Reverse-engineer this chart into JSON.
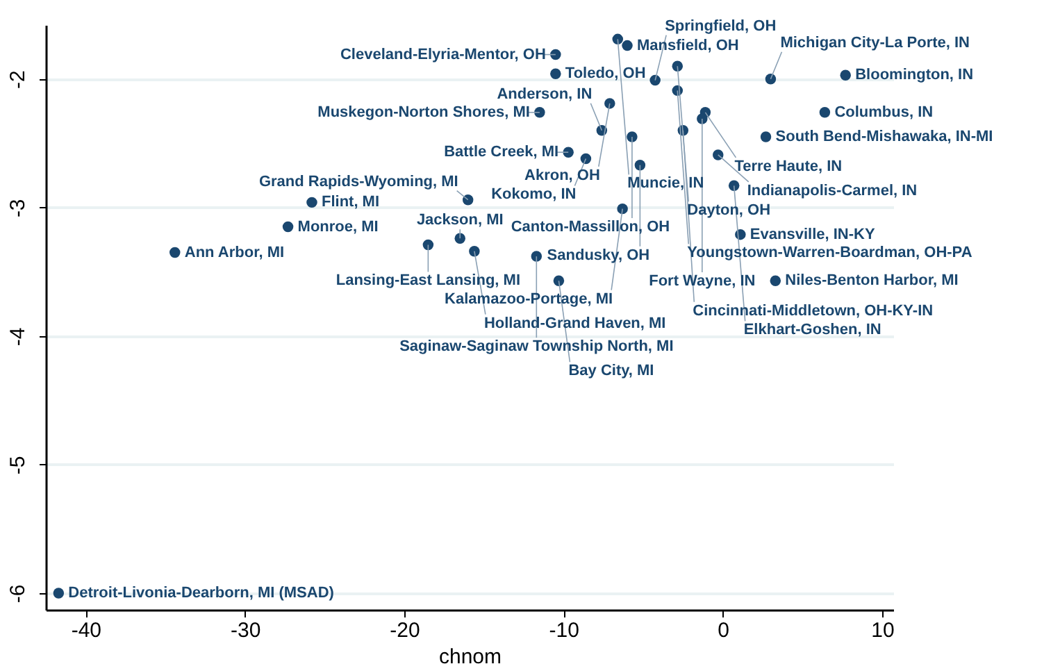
{
  "chart_data": {
    "type": "scatter",
    "xlabel": "chnom",
    "xlim": [
      -42.5,
      10.7
    ],
    "ylim": [
      -6.13,
      -1.58
    ],
    "xticks": [
      -40,
      -30,
      -20,
      -10,
      0,
      10
    ],
    "yticks": [
      -6,
      -5,
      -4,
      -3,
      -2
    ],
    "grid": "y",
    "marker": "circle",
    "series": [
      {
        "color": "#1a476f",
        "x": [
          -6.6,
          -6.0,
          -10.5,
          -10.5,
          -2.85,
          -4.25,
          3.0,
          7.7,
          -2.85,
          -7.1,
          -11.5,
          -1.1,
          -1.3,
          6.4,
          -7.6,
          -5.7,
          -2.5,
          2.7,
          -9.7,
          -8.6,
          -5.2,
          -0.3,
          0.7,
          -16.0,
          -6.3,
          -25.8,
          -27.3,
          -34.4,
          -16.5,
          -18.5,
          -15.6,
          -11.7,
          -10.3,
          1.1,
          3.3,
          -41.7
        ],
        "values": [
          -1.69,
          -1.74,
          -1.81,
          -1.96,
          -1.9,
          -2.01,
          -2.0,
          -1.97,
          -2.09,
          -2.19,
          -2.26,
          -2.26,
          -2.31,
          -2.26,
          -2.4,
          -2.45,
          -2.4,
          -2.45,
          -2.57,
          -2.62,
          -2.67,
          -2.59,
          -2.83,
          -2.94,
          -3.01,
          -2.96,
          -3.15,
          -3.35,
          -3.24,
          -3.29,
          -3.34,
          -3.38,
          -3.57,
          -3.21,
          -3.57,
          -6.0
        ]
      }
    ],
    "annotations": [
      {
        "text": "Muncie, IN",
        "x": -6.6,
        "y": -1.69
      },
      {
        "text": "Mansfield, OH",
        "x": -6.0,
        "y": -1.74
      },
      {
        "text": "Cleveland-Elyria-Mentor, OH",
        "x": -10.5,
        "y": -1.81
      },
      {
        "text": "Toledo, OH",
        "x": -10.5,
        "y": -1.96
      },
      {
        "text": "Dayton, OH",
        "x": -2.85,
        "y": -1.9
      },
      {
        "text": "Springfield, OH",
        "x": -4.25,
        "y": -2.01
      },
      {
        "text": "Michigan City-La Porte, IN",
        "x": 3.0,
        "y": -2.0
      },
      {
        "text": "Bloomington, IN",
        "x": 7.7,
        "y": -1.97
      },
      {
        "text": "Youngstown-Warren-Boardman, OH-PA",
        "x": -2.85,
        "y": -2.09
      },
      {
        "text": "Akron, OH",
        "x": -7.1,
        "y": -2.19
      },
      {
        "text": "Muskegon-Norton Shores, MI",
        "x": -11.5,
        "y": -2.26
      },
      {
        "text": "Terre Haute, IN",
        "x": -1.1,
        "y": -2.26
      },
      {
        "text": "Fort Wayne, IN",
        "x": -1.3,
        "y": -2.31
      },
      {
        "text": "Columbus, IN",
        "x": 6.4,
        "y": -2.26
      },
      {
        "text": "Anderson, IN",
        "x": -7.6,
        "y": -2.4
      },
      {
        "text": "Canton-Massillon, OH",
        "x": -5.7,
        "y": -2.45
      },
      {
        "text": "Cincinnati-Middletown, OH-KY-IN",
        "x": -2.5,
        "y": -2.4
      },
      {
        "text": "South Bend-Mishawaka, IN-MI",
        "x": 2.7,
        "y": -2.45
      },
      {
        "text": "Battle Creek, MI",
        "x": -9.7,
        "y": -2.57
      },
      {
        "text": "Kokomo, IN",
        "x": -8.6,
        "y": -2.62
      },
      {
        "text": "Sandusky, OH",
        "x": -5.2,
        "y": -2.67
      },
      {
        "text": "Indianapolis-Carmel, IN",
        "x": -0.3,
        "y": -2.59
      },
      {
        "text": "Elkhart-Goshen, IN",
        "x": 0.7,
        "y": -2.83
      },
      {
        "text": "Grand Rapids-Wyoming, MI",
        "x": -16.0,
        "y": -2.94
      },
      {
        "text": "Kalamazoo-Portage, MI",
        "x": -6.3,
        "y": -3.01
      },
      {
        "text": "Flint, MI",
        "x": -25.8,
        "y": -2.96
      },
      {
        "text": "Monroe, MI",
        "x": -27.3,
        "y": -3.15
      },
      {
        "text": "Ann Arbor, MI",
        "x": -34.4,
        "y": -3.35
      },
      {
        "text": "Jackson, MI",
        "x": -16.5,
        "y": -3.24
      },
      {
        "text": "Lansing-East Lansing, MI",
        "x": -18.5,
        "y": -3.29
      },
      {
        "text": "Holland-Grand Haven, MI",
        "x": -15.6,
        "y": -3.34
      },
      {
        "text": "Saginaw-Saginaw Township North, MI",
        "x": -11.7,
        "y": -3.38
      },
      {
        "text": "Bay City, MI",
        "x": -10.3,
        "y": -3.57
      },
      {
        "text": "Evansville, IN-KY",
        "x": 1.1,
        "y": -3.21
      },
      {
        "text": "Niles-Benton Harbor, MI",
        "x": 3.3,
        "y": -3.57
      },
      {
        "text": "Detroit-Livonia-Dearborn, MI  (MSAD)",
        "x": -41.7,
        "y": -6.0
      }
    ]
  }
}
